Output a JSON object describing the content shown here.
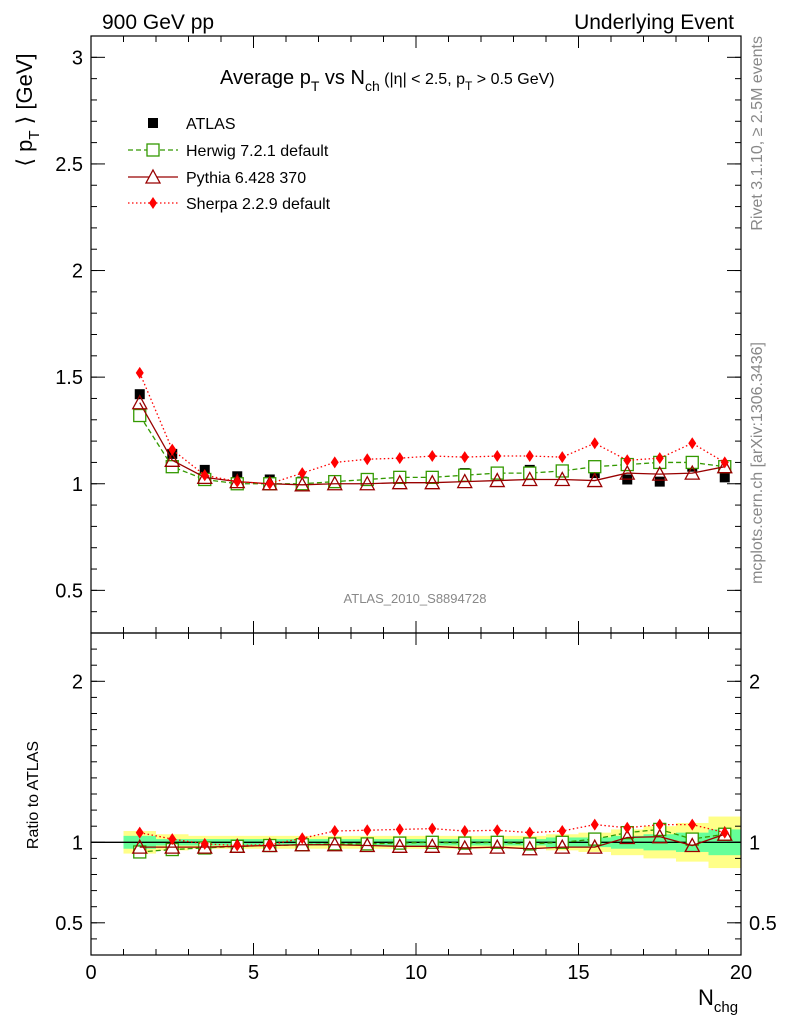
{
  "header": {
    "left": "900 GeV pp",
    "right": "Underlying Event"
  },
  "side_text": {
    "rivet": "Rivet 3.1.10, ≥ 2.5M events",
    "mcplots": "mcplots.cern.ch [arXiv:1306.3436]"
  },
  "analysis_id": "ATLAS_2010_S8894728",
  "chart_data": [
    {
      "type": "scatter",
      "title": "Average p_T vs N_ch (|η| < 2.5, p_T > 0.5 GeV)",
      "ylabel": "⟨ p_T ⟩ [GeV]",
      "xlabel": "N_chg",
      "xlim": [
        0,
        20
      ],
      "ylim": [
        0.3,
        3.1
      ],
      "yticks": [
        0.5,
        1,
        1.5,
        2,
        2.5,
        3
      ],
      "xticks": [
        0,
        5,
        10,
        15,
        20
      ],
      "legend_position": "top-left",
      "x": [
        1.5,
        2.5,
        3.5,
        4.5,
        5.5,
        6.5,
        7.5,
        8.5,
        9.5,
        10.5,
        11.5,
        12.5,
        13.5,
        14.5,
        15.5,
        16.5,
        17.5,
        18.5,
        19.5
      ],
      "series": [
        {
          "name": "ATLAS",
          "color": "#000000",
          "marker": "filled-square",
          "values": [
            1.42,
            1.14,
            1.065,
            1.035,
            1.02,
            1.01,
            1.015,
            1.025,
            1.035,
            1.03,
            1.05,
            1.05,
            1.065,
            1.055,
            1.05,
            1.02,
            1.01,
            1.08,
            1.03
          ]
        },
        {
          "name": "Herwig 7.2.1 default",
          "color": "#339900",
          "marker": "open-square",
          "line": "dashed",
          "values": [
            1.32,
            1.08,
            1.02,
            1.0,
            1.0,
            1.0,
            1.01,
            1.02,
            1.03,
            1.03,
            1.04,
            1.05,
            1.05,
            1.06,
            1.08,
            1.09,
            1.1,
            1.1,
            1.08
          ]
        },
        {
          "name": "Pythia 6.428 370",
          "color": "#990000",
          "marker": "open-triangle",
          "line": "solid",
          "values": [
            1.38,
            1.11,
            1.03,
            1.01,
            1.0,
            0.995,
            1.0,
            1.0,
            1.005,
            1.005,
            1.01,
            1.015,
            1.02,
            1.02,
            1.015,
            1.05,
            1.045,
            1.05,
            1.08
          ]
        },
        {
          "name": "Sherpa 2.2.9 default",
          "color": "#ff0000",
          "marker": "filled-diamond",
          "line": "dotted",
          "values": [
            1.52,
            1.16,
            1.04,
            1.01,
            1.0,
            1.05,
            1.1,
            1.115,
            1.12,
            1.13,
            1.125,
            1.13,
            1.13,
            1.125,
            1.19,
            1.11,
            1.12,
            1.19,
            1.1
          ]
        }
      ]
    },
    {
      "type": "line",
      "ylabel": "Ratio to ATLAS",
      "xlabel": "N_chg",
      "xlim": [
        0,
        20
      ],
      "ylim": [
        0.3,
        2.3
      ],
      "yticks": [
        0.5,
        1,
        2
      ],
      "xticks": [
        0,
        5,
        10,
        15,
        20
      ],
      "x": [
        1.5,
        2.5,
        3.5,
        4.5,
        5.5,
        6.5,
        7.5,
        8.5,
        9.5,
        10.5,
        11.5,
        12.5,
        13.5,
        14.5,
        15.5,
        16.5,
        17.5,
        18.5,
        19.5
      ],
      "bands": {
        "stat_color": "#66ff99",
        "total_color": "#ffff88",
        "stat_half_width": [
          0.04,
          0.02,
          0.02,
          0.02,
          0.02,
          0.02,
          0.02,
          0.02,
          0.02,
          0.02,
          0.02,
          0.02,
          0.02,
          0.03,
          0.03,
          0.04,
          0.05,
          0.06,
          0.08
        ],
        "total_half_width": [
          0.07,
          0.05,
          0.04,
          0.04,
          0.04,
          0.04,
          0.04,
          0.04,
          0.04,
          0.04,
          0.04,
          0.04,
          0.04,
          0.05,
          0.06,
          0.08,
          0.1,
          0.12,
          0.16
        ]
      },
      "series": [
        {
          "name": "Herwig 7.2.1 default",
          "color": "#339900",
          "marker": "open-square",
          "line": "dashed",
          "values": [
            0.94,
            0.955,
            0.965,
            0.975,
            0.98,
            0.985,
            0.99,
            0.99,
            0.995,
            1.0,
            0.995,
            1.0,
            0.99,
            1.0,
            1.02,
            1.06,
            1.08,
            1.02,
            1.05
          ]
        },
        {
          "name": "Pythia 6.428 370",
          "color": "#990000",
          "marker": "open-triangle",
          "line": "solid",
          "values": [
            0.97,
            0.97,
            0.97,
            0.975,
            0.98,
            0.985,
            0.985,
            0.98,
            0.975,
            0.975,
            0.965,
            0.97,
            0.96,
            0.97,
            0.97,
            1.03,
            1.035,
            0.98,
            1.05
          ]
        },
        {
          "name": "Sherpa 2.2.9 default",
          "color": "#ff0000",
          "marker": "filled-diamond",
          "line": "dotted",
          "values": [
            1.06,
            1.02,
            0.99,
            0.98,
            0.985,
            1.025,
            1.07,
            1.075,
            1.08,
            1.085,
            1.07,
            1.075,
            1.06,
            1.07,
            1.11,
            1.09,
            1.11,
            1.11,
            1.06
          ]
        }
      ]
    }
  ]
}
